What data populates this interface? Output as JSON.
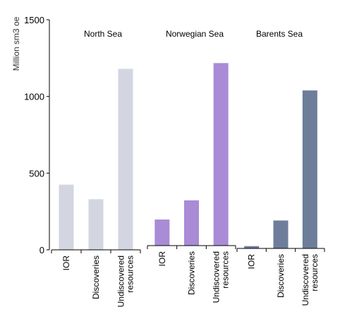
{
  "chart_data": {
    "type": "bar",
    "ylabel": "Million sm3 oe",
    "ylim": [
      0,
      1500
    ],
    "yticks": [
      0,
      500,
      1000,
      1500
    ],
    "grid": false,
    "legend": "none",
    "panels": [
      {
        "title": "North Sea",
        "color": "#d3d6e1",
        "categories": [
          {
            "lines": [
              "IOR"
            ],
            "value": 425
          },
          {
            "lines": [
              "Discoveries"
            ],
            "value": 330
          },
          {
            "lines": [
              "Undiscovered",
              "resources"
            ],
            "value": 1180
          }
        ]
      },
      {
        "title": "Norwegian Sea",
        "color": "#a98bd6",
        "categories": [
          {
            "lines": [
              "IOR"
            ],
            "value": 170
          },
          {
            "lines": [
              "Discoveries"
            ],
            "value": 295
          },
          {
            "lines": [
              "Undiscovered",
              "resources"
            ],
            "value": 1190
          }
        ]
      },
      {
        "title": "Barents Sea",
        "color": "#6e7d9a",
        "categories": [
          {
            "lines": [
              "IOR"
            ],
            "value": 15
          },
          {
            "lines": [
              "Discoveries"
            ],
            "value": 182
          },
          {
            "lines": [
              "Undiscovered",
              "resources"
            ],
            "value": 1030
          }
        ]
      }
    ]
  }
}
